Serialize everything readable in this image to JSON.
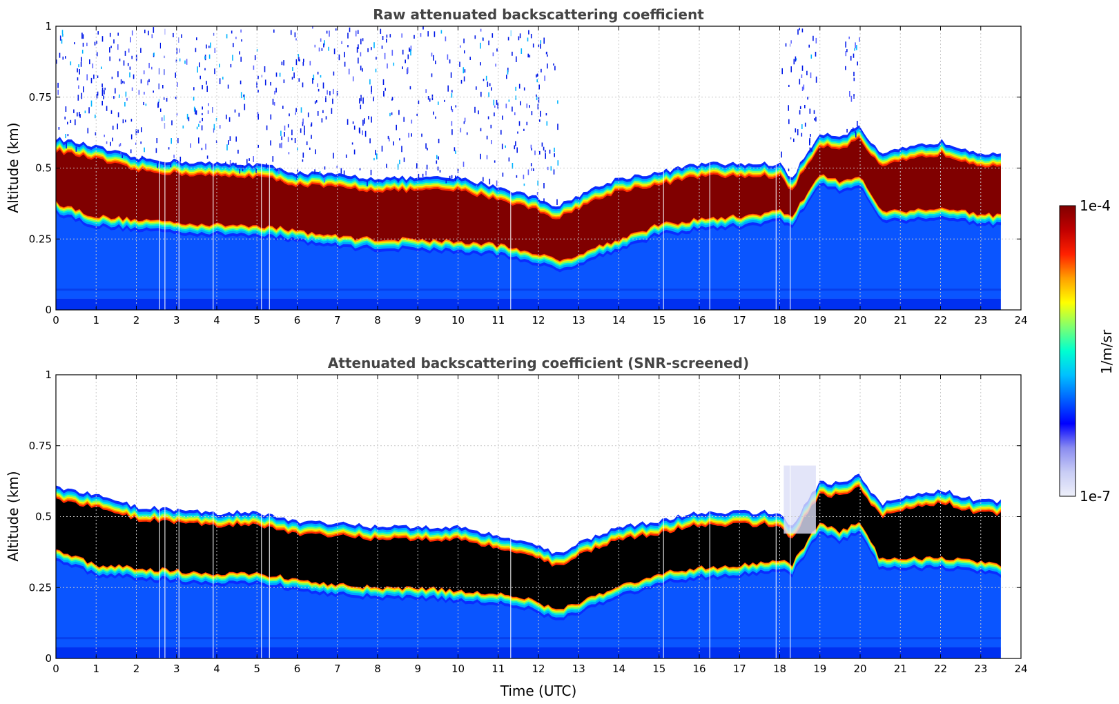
{
  "chart_data": [
    {
      "type": "heatmap",
      "title": "Raw attenuated backscattering coefficient",
      "xlabel": "",
      "ylabel": "Altitude (km)",
      "xlim": [
        0,
        24
      ],
      "ylim": [
        0,
        1
      ],
      "xticks": [
        "0",
        "1",
        "2",
        "3",
        "4",
        "5",
        "6",
        "7",
        "8",
        "9",
        "10",
        "11",
        "12",
        "13",
        "14",
        "15",
        "16",
        "17",
        "18",
        "19",
        "20",
        "21",
        "22",
        "23",
        "24"
      ],
      "yticks": [
        "0",
        "0.25",
        "0.5",
        "0.75",
        "1"
      ],
      "grid": true,
      "data_end_hour": 23.5,
      "layer_top_km": [
        [
          0,
          0.56
        ],
        [
          1,
          0.53
        ],
        [
          2,
          0.49
        ],
        [
          3,
          0.48
        ],
        [
          4,
          0.47
        ],
        [
          5,
          0.47
        ],
        [
          6,
          0.44
        ],
        [
          7,
          0.43
        ],
        [
          8,
          0.42
        ],
        [
          9,
          0.42
        ],
        [
          10,
          0.42
        ],
        [
          11,
          0.39
        ],
        [
          12,
          0.35
        ],
        [
          12.5,
          0.32
        ],
        [
          13,
          0.36
        ],
        [
          14,
          0.42
        ],
        [
          15,
          0.44
        ],
        [
          16,
          0.47
        ],
        [
          17,
          0.47
        ],
        [
          18,
          0.47
        ],
        [
          18.3,
          0.42
        ],
        [
          19,
          0.58
        ],
        [
          19.5,
          0.57
        ],
        [
          20,
          0.6
        ],
        [
          20.5,
          0.5
        ],
        [
          21,
          0.52
        ],
        [
          22,
          0.55
        ],
        [
          23,
          0.51
        ],
        [
          23.5,
          0.51
        ]
      ],
      "layer_bottom_km": [
        [
          0,
          0.38
        ],
        [
          1,
          0.33
        ],
        [
          2,
          0.32
        ],
        [
          3,
          0.31
        ],
        [
          4,
          0.3
        ],
        [
          5,
          0.3
        ],
        [
          6,
          0.28
        ],
        [
          7,
          0.26
        ],
        [
          8,
          0.25
        ],
        [
          9,
          0.25
        ],
        [
          10,
          0.24
        ],
        [
          11,
          0.23
        ],
        [
          12,
          0.2
        ],
        [
          12.5,
          0.17
        ],
        [
          13,
          0.2
        ],
        [
          14,
          0.25
        ],
        [
          15,
          0.3
        ],
        [
          16,
          0.32
        ],
        [
          17,
          0.33
        ],
        [
          18,
          0.35
        ],
        [
          18.3,
          0.33
        ],
        [
          19,
          0.48
        ],
        [
          19.5,
          0.45
        ],
        [
          20,
          0.48
        ],
        [
          20.5,
          0.35
        ],
        [
          21,
          0.35
        ],
        [
          22,
          0.36
        ],
        [
          23,
          0.34
        ],
        [
          23.5,
          0.33
        ]
      ],
      "noise_regions_hours": [
        [
          0,
          7
        ],
        [
          7,
          12.5
        ],
        [
          18,
          18.9
        ],
        [
          19.6,
          20
        ]
      ]
    },
    {
      "type": "heatmap",
      "title": "Attenuated backscattering coefficient (SNR-screened)",
      "xlabel": "Time (UTC)",
      "ylabel": "Altitude (km)",
      "xlim": [
        0,
        24
      ],
      "ylim": [
        0,
        1
      ],
      "xticks": [
        "0",
        "1",
        "2",
        "3",
        "4",
        "5",
        "6",
        "7",
        "8",
        "9",
        "10",
        "11",
        "12",
        "13",
        "14",
        "15",
        "16",
        "17",
        "18",
        "19",
        "20",
        "21",
        "22",
        "23",
        "24"
      ],
      "yticks": [
        "0",
        "0.25",
        "0.5",
        "0.75",
        "1"
      ],
      "grid": true,
      "data_end_hour": 23.5,
      "saturated_color": "#000000"
    }
  ],
  "colorbar": {
    "label": "1/m/sr",
    "max_label": "1e-4",
    "min_label": "1e-7",
    "stops": [
      "#eef0fa",
      "#c8ccf5",
      "#8a8cf0",
      "#0000ff",
      "#0060ff",
      "#00c0ff",
      "#00ffd0",
      "#7fff70",
      "#ffff00",
      "#ffa000",
      "#ff2000",
      "#c00000",
      "#800000"
    ]
  },
  "colors": {
    "background": "#ffffff",
    "grid": "#c8c8c8",
    "low_fill": "#0a55ff",
    "deep_blue": "#0018e8",
    "core": "#800000",
    "saturated": "#000000"
  }
}
